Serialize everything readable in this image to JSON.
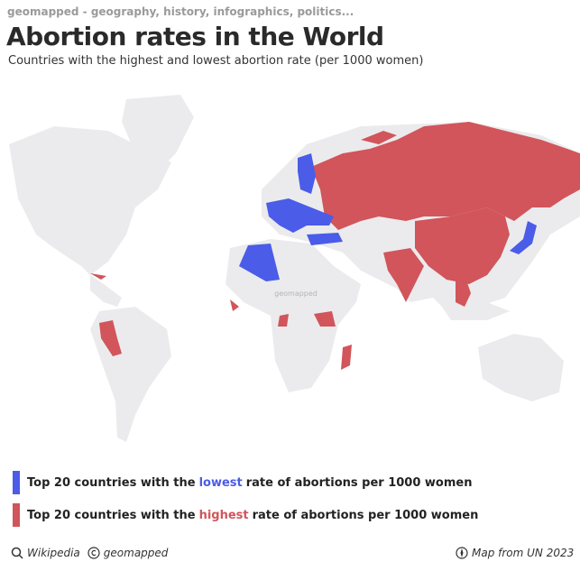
{
  "header": {
    "site": "geomapped - geography, history, infographics, politics...",
    "title": "Abortion rates in the World",
    "subtitle": "Countries with the highest and lowest abortion rate (per 1000 women)"
  },
  "map": {
    "watermark": "geomapped"
  },
  "legend": [
    {
      "prefix": "Top 20 countries with the",
      "keyword": "lowest",
      "suffix": "rate of abortions per 1000 women"
    },
    {
      "prefix": "Top 20 countries with the",
      "keyword": "highest",
      "suffix": "rate of abortions per 1000 women"
    }
  ],
  "footer": {
    "source": "Wikipedia",
    "credit": "geomapped",
    "map_source": "Map from UN 2023"
  }
}
